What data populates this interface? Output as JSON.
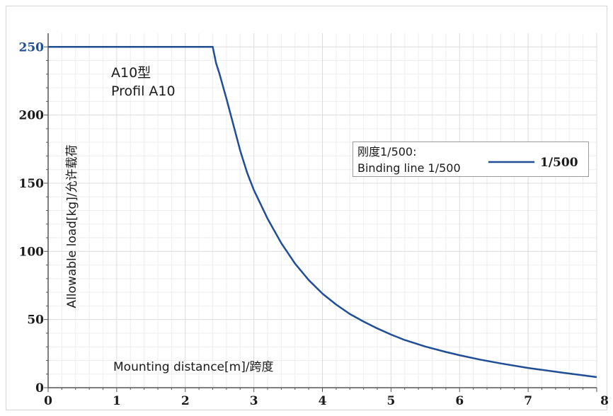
{
  "chart_data": {
    "type": "line",
    "annotation": [
      "A10型",
      "Profil A10"
    ],
    "xlabel": "Mounting distance[m]/跨度",
    "ylabel": "Allowable load[kg]/允许载荷",
    "xlim": [
      0,
      8
    ],
    "ylim": [
      0,
      260
    ],
    "xticks": [
      "0",
      "1",
      "2",
      "3",
      "4",
      "5",
      "6",
      "7",
      "8"
    ],
    "yticks": [
      "0",
      "50",
      "100",
      "150",
      "200",
      "250"
    ],
    "highlight_ytick": "250",
    "grid": true,
    "legend": {
      "placement": "top-right",
      "title_lines": [
        "刚度1/500:",
        "Binding line 1/500"
      ]
    },
    "series": [
      {
        "name": "1/500",
        "color": "#1f4e96",
        "x": [
          0,
          2.4,
          2.45,
          2.5,
          2.6,
          2.7,
          2.8,
          2.9,
          3.0,
          3.2,
          3.4,
          3.6,
          3.8,
          4.0,
          4.2,
          4.4,
          4.6,
          4.8,
          5.0,
          5.2,
          5.5,
          5.8,
          6.0,
          6.3,
          6.6,
          7.0,
          7.5,
          8.0
        ],
        "y": [
          250,
          250,
          238,
          230,
          212,
          193,
          174,
          158,
          145,
          124,
          106,
          91,
          79,
          69,
          61,
          54,
          48.5,
          43.5,
          39,
          35,
          30.2,
          26.2,
          23.8,
          20.6,
          17.8,
          14.5,
          11,
          7.8
        ]
      }
    ]
  }
}
